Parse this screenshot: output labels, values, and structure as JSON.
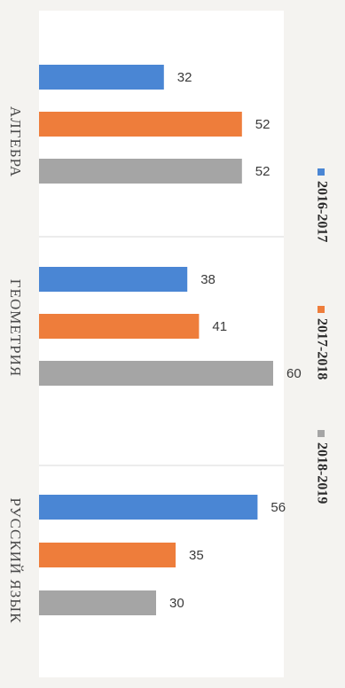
{
  "chart_data": {
    "type": "bar",
    "orientation": "horizontal",
    "categories": [
      "АЛГЕБРА",
      "ГЕОМЕТРИЯ",
      "РУССКИЙ ЯЗЫК"
    ],
    "series": [
      {
        "name": "2016-2017",
        "color": "#4a86d4",
        "values": [
          32,
          38,
          56
        ]
      },
      {
        "name": "2017-2018",
        "color": "#ee7d3b",
        "values": [
          52,
          41,
          35
        ]
      },
      {
        "name": "2018-2019",
        "color": "#a5a5a5",
        "values": [
          52,
          60,
          30
        ]
      }
    ],
    "title": "",
    "xlabel": "",
    "ylabel": "",
    "xlim": [
      0,
      60
    ],
    "grid": false,
    "legend_position": "right"
  }
}
